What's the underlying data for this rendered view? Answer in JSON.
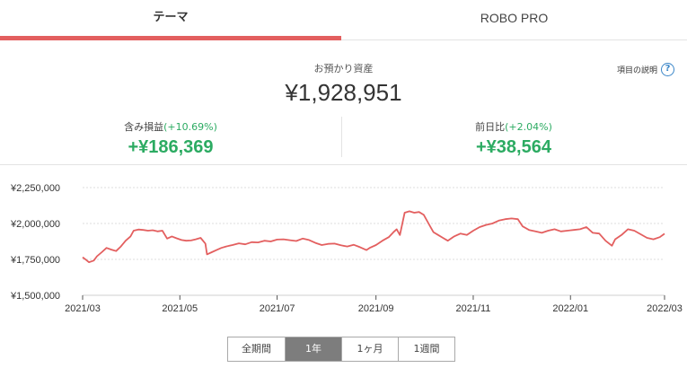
{
  "tabs": [
    {
      "label": "テーマ",
      "active": true
    },
    {
      "label": "ROBO PRO",
      "active": false
    }
  ],
  "summary": {
    "label": "お預かり資産",
    "value": "¥1,928,951",
    "help_label": "項目の説明",
    "help_icon": "question-circle-icon"
  },
  "metrics": {
    "unrealized": {
      "label": "含み損益",
      "pct": "(+10.69%)",
      "value": "+¥186,369"
    },
    "daily": {
      "label": "前日比",
      "pct": "(+2.04%)",
      "value": "+¥38,564"
    }
  },
  "colors": {
    "accent": "#e35f5f",
    "positive": "#2cab62",
    "help": "#3a86c8",
    "active_period": "#7d7d7d"
  },
  "chart_data": {
    "type": "line",
    "series": [
      {
        "color": "#e35f5f",
        "points": [
          [
            "2021-03-01",
            1765000
          ],
          [
            "2021-03-03",
            1748000
          ],
          [
            "2021-03-05",
            1730000
          ],
          [
            "2021-03-08",
            1742000
          ],
          [
            "2021-03-10",
            1772000
          ],
          [
            "2021-03-13",
            1800000
          ],
          [
            "2021-03-16",
            1830000
          ],
          [
            "2021-03-19",
            1818000
          ],
          [
            "2021-03-22",
            1808000
          ],
          [
            "2021-03-25",
            1840000
          ],
          [
            "2021-03-28",
            1880000
          ],
          [
            "2021-03-31",
            1910000
          ],
          [
            "2021-04-02",
            1950000
          ],
          [
            "2021-04-05",
            1958000
          ],
          [
            "2021-04-08",
            1955000
          ],
          [
            "2021-04-11",
            1950000
          ],
          [
            "2021-04-14",
            1953000
          ],
          [
            "2021-04-17",
            1945000
          ],
          [
            "2021-04-20",
            1950000
          ],
          [
            "2021-04-23",
            1895000
          ],
          [
            "2021-04-26",
            1910000
          ],
          [
            "2021-04-29",
            1897000
          ],
          [
            "2021-05-02",
            1885000
          ],
          [
            "2021-05-05",
            1880000
          ],
          [
            "2021-05-08",
            1882000
          ],
          [
            "2021-05-11",
            1890000
          ],
          [
            "2021-05-14",
            1900000
          ],
          [
            "2021-05-17",
            1860000
          ],
          [
            "2021-05-18",
            1785000
          ],
          [
            "2021-05-21",
            1800000
          ],
          [
            "2021-05-24",
            1815000
          ],
          [
            "2021-05-27",
            1830000
          ],
          [
            "2021-05-30",
            1840000
          ],
          [
            "2021-06-03",
            1850000
          ],
          [
            "2021-06-07",
            1862000
          ],
          [
            "2021-06-11",
            1855000
          ],
          [
            "2021-06-15",
            1870000
          ],
          [
            "2021-06-19",
            1868000
          ],
          [
            "2021-06-23",
            1880000
          ],
          [
            "2021-06-27",
            1875000
          ],
          [
            "2021-07-01",
            1888000
          ],
          [
            "2021-07-05",
            1890000
          ],
          [
            "2021-07-09",
            1884000
          ],
          [
            "2021-07-13",
            1878000
          ],
          [
            "2021-07-17",
            1895000
          ],
          [
            "2021-07-21",
            1885000
          ],
          [
            "2021-07-25",
            1865000
          ],
          [
            "2021-07-29",
            1850000
          ],
          [
            "2021-08-02",
            1858000
          ],
          [
            "2021-08-06",
            1860000
          ],
          [
            "2021-08-10",
            1848000
          ],
          [
            "2021-08-14",
            1840000
          ],
          [
            "2021-08-18",
            1852000
          ],
          [
            "2021-08-22",
            1835000
          ],
          [
            "2021-08-26",
            1815000
          ],
          [
            "2021-08-28",
            1830000
          ],
          [
            "2021-09-01",
            1850000
          ],
          [
            "2021-09-05",
            1880000
          ],
          [
            "2021-09-09",
            1905000
          ],
          [
            "2021-09-12",
            1940000
          ],
          [
            "2021-09-14",
            1960000
          ],
          [
            "2021-09-16",
            1920000
          ],
          [
            "2021-09-19",
            2075000
          ],
          [
            "2021-09-22",
            2085000
          ],
          [
            "2021-09-25",
            2075000
          ],
          [
            "2021-09-28",
            2080000
          ],
          [
            "2021-10-01",
            2060000
          ],
          [
            "2021-10-04",
            2000000
          ],
          [
            "2021-10-07",
            1940000
          ],
          [
            "2021-10-10",
            1920000
          ],
          [
            "2021-10-13",
            1900000
          ],
          [
            "2021-10-16",
            1880000
          ],
          [
            "2021-10-20",
            1910000
          ],
          [
            "2021-10-24",
            1930000
          ],
          [
            "2021-10-28",
            1920000
          ],
          [
            "2021-11-01",
            1950000
          ],
          [
            "2021-11-05",
            1975000
          ],
          [
            "2021-11-09",
            1990000
          ],
          [
            "2021-11-13",
            2000000
          ],
          [
            "2021-11-17",
            2020000
          ],
          [
            "2021-11-21",
            2030000
          ],
          [
            "2021-11-25",
            2035000
          ],
          [
            "2021-11-29",
            2030000
          ],
          [
            "2021-12-02",
            1980000
          ],
          [
            "2021-12-06",
            1955000
          ],
          [
            "2021-12-10",
            1945000
          ],
          [
            "2021-12-14",
            1935000
          ],
          [
            "2021-12-18",
            1950000
          ],
          [
            "2021-12-22",
            1960000
          ],
          [
            "2021-12-26",
            1945000
          ],
          [
            "2021-12-30",
            1950000
          ],
          [
            "2022-01-03",
            1955000
          ],
          [
            "2022-01-07",
            1960000
          ],
          [
            "2022-01-11",
            1975000
          ],
          [
            "2022-01-15",
            1935000
          ],
          [
            "2022-01-19",
            1930000
          ],
          [
            "2022-01-23",
            1880000
          ],
          [
            "2022-01-27",
            1845000
          ],
          [
            "2022-01-29",
            1890000
          ],
          [
            "2022-02-02",
            1920000
          ],
          [
            "2022-02-06",
            1960000
          ],
          [
            "2022-02-10",
            1950000
          ],
          [
            "2022-02-14",
            1925000
          ],
          [
            "2022-02-18",
            1900000
          ],
          [
            "2022-02-22",
            1890000
          ],
          [
            "2022-02-26",
            1905000
          ],
          [
            "2022-03-01",
            1928951
          ]
        ]
      }
    ],
    "y_ticks": [
      "¥2,250,000",
      "¥2,000,000",
      "¥1,750,000",
      "¥1,500,000"
    ],
    "y_tick_values": [
      2250000,
      2000000,
      1750000,
      1500000
    ],
    "ylim": [
      1500000,
      2250000
    ],
    "x_ticks": [
      "2021/03",
      "2021/05",
      "2021/07",
      "2021/09",
      "2021/11",
      "2022/01",
      "2022/03"
    ],
    "x_tick_dates": [
      "2021-03-01",
      "2021-05-01",
      "2021-07-01",
      "2021-09-01",
      "2021-11-01",
      "2022-01-01",
      "2022-03-01"
    ],
    "xlim": [
      "2021-03-01",
      "2022-03-01"
    ],
    "grid": "horizontal dotted"
  },
  "periods": [
    {
      "label": "全期間",
      "active": false
    },
    {
      "label": "1年",
      "active": true
    },
    {
      "label": "1ヶ月",
      "active": false
    },
    {
      "label": "1週間",
      "active": false
    }
  ]
}
